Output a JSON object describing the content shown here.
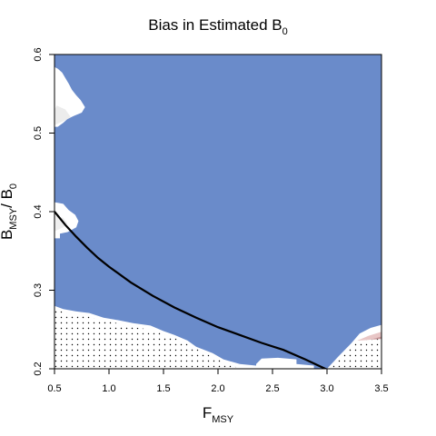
{
  "chart_data": {
    "type": "heatmap",
    "title": "Bias in Estimated B",
    "title_subscript": "0",
    "xlabel": "F",
    "xlabel_subscript": "MSY",
    "ylabel_parts": [
      "B",
      "MSY",
      "/ B",
      "0"
    ],
    "xlim": [
      0.5,
      3.5
    ],
    "ylim": [
      0.2,
      0.6
    ],
    "x_ticks": [
      0.5,
      1.0,
      1.5,
      2.0,
      2.5,
      3.0,
      3.5
    ],
    "x_tick_labels": [
      "0.5",
      "1.0",
      "1.5",
      "2.0",
      "2.5",
      "3.0",
      "3.5"
    ],
    "y_ticks": [
      0.2,
      0.3,
      0.4,
      0.5,
      0.6
    ],
    "y_tick_labels": [
      "0.2",
      "0.3",
      "0.4",
      "0.5",
      "0.6"
    ],
    "fill_color": "#6a8bca",
    "white_regions": [
      [
        [
          0.5,
          0.508
        ],
        [
          0.53,
          0.508
        ],
        [
          0.58,
          0.513
        ],
        [
          0.62,
          0.518
        ],
        [
          0.68,
          0.522
        ],
        [
          0.75,
          0.526
        ],
        [
          0.78,
          0.533
        ],
        [
          0.74,
          0.542
        ],
        [
          0.7,
          0.548
        ],
        [
          0.66,
          0.555
        ],
        [
          0.63,
          0.563
        ],
        [
          0.6,
          0.57
        ],
        [
          0.57,
          0.577
        ],
        [
          0.53,
          0.582
        ],
        [
          0.5,
          0.584
        ]
      ],
      [
        [
          0.5,
          0.366
        ],
        [
          0.55,
          0.366
        ],
        [
          0.55,
          0.372
        ],
        [
          0.62,
          0.374
        ],
        [
          0.7,
          0.38
        ],
        [
          0.72,
          0.388
        ],
        [
          0.69,
          0.396
        ],
        [
          0.63,
          0.402
        ],
        [
          0.58,
          0.41
        ],
        [
          0.5,
          0.412
        ]
      ],
      [
        [
          0.5,
          0.2
        ],
        [
          0.5,
          0.28
        ],
        [
          0.58,
          0.276
        ],
        [
          0.7,
          0.273
        ],
        [
          0.82,
          0.271
        ],
        [
          0.95,
          0.265
        ],
        [
          1.08,
          0.262
        ],
        [
          1.22,
          0.258
        ],
        [
          1.38,
          0.255
        ],
        [
          1.5,
          0.248
        ],
        [
          1.6,
          0.243
        ],
        [
          1.72,
          0.236
        ],
        [
          1.8,
          0.228
        ],
        [
          1.95,
          0.22
        ],
        [
          2.05,
          0.212
        ],
        [
          2.2,
          0.206
        ],
        [
          2.35,
          0.204
        ],
        [
          2.55,
          0.2
        ]
      ],
      [
        [
          2.35,
          0.2
        ],
        [
          2.35,
          0.206
        ],
        [
          2.4,
          0.213
        ],
        [
          2.55,
          0.214
        ],
        [
          2.72,
          0.212
        ],
        [
          2.72,
          0.206
        ],
        [
          2.88,
          0.204
        ],
        [
          2.88,
          0.2
        ]
      ],
      [
        [
          3.0,
          0.2
        ],
        [
          3.1,
          0.215
        ],
        [
          3.22,
          0.232
        ],
        [
          3.3,
          0.245
        ],
        [
          3.4,
          0.252
        ],
        [
          3.5,
          0.256
        ],
        [
          3.5,
          0.2
        ]
      ]
    ],
    "dotted_regions": [
      [
        [
          0.5,
          0.2
        ],
        [
          0.5,
          0.277
        ],
        [
          0.58,
          0.272
        ],
        [
          0.7,
          0.269
        ],
        [
          0.82,
          0.266
        ],
        [
          0.95,
          0.261
        ],
        [
          1.08,
          0.258
        ],
        [
          1.22,
          0.253
        ],
        [
          1.38,
          0.25
        ],
        [
          1.5,
          0.244
        ],
        [
          1.62,
          0.238
        ],
        [
          1.74,
          0.23
        ],
        [
          1.85,
          0.222
        ],
        [
          1.98,
          0.213
        ],
        [
          2.1,
          0.206
        ],
        [
          2.2,
          0.2
        ]
      ],
      [
        [
          3.0,
          0.2
        ],
        [
          3.1,
          0.214
        ],
        [
          3.2,
          0.226
        ],
        [
          3.3,
          0.236
        ],
        [
          3.5,
          0.238
        ],
        [
          3.5,
          0.2
        ]
      ]
    ],
    "shaded_patches": [
      {
        "polygon": [
          [
            3.28,
            0.236
          ],
          [
            3.38,
            0.242
          ],
          [
            3.5,
            0.247
          ],
          [
            3.5,
            0.237
          ],
          [
            3.4,
            0.233
          ]
        ],
        "color": "#e8c6c6"
      },
      {
        "polygon": [
          [
            3.42,
            0.238
          ],
          [
            3.5,
            0.241
          ],
          [
            3.5,
            0.236
          ],
          [
            3.45,
            0.235
          ]
        ],
        "color": "#c9999b"
      },
      {
        "polygon": [
          [
            0.5,
            0.51
          ],
          [
            0.58,
            0.515
          ],
          [
            0.65,
            0.52
          ],
          [
            0.6,
            0.53
          ],
          [
            0.52,
            0.535
          ],
          [
            0.5,
            0.53
          ]
        ],
        "color": "#ececec"
      },
      {
        "polygon": [
          [
            0.5,
            0.375
          ],
          [
            0.58,
            0.38
          ],
          [
            0.62,
            0.385
          ],
          [
            0.58,
            0.392
          ],
          [
            0.5,
            0.395
          ]
        ],
        "color": "#efefef"
      }
    ],
    "series": [
      {
        "type": "line",
        "x": [
          0.5,
          0.6,
          0.7,
          0.8,
          0.9,
          1.0,
          1.2,
          1.4,
          1.6,
          1.8,
          2.0,
          2.2,
          2.4,
          2.6,
          2.8,
          3.0
        ],
        "values": [
          0.4,
          0.383,
          0.368,
          0.354,
          0.341,
          0.33,
          0.31,
          0.293,
          0.278,
          0.265,
          0.253,
          0.243,
          0.233,
          0.224,
          0.212,
          0.199
        ]
      }
    ],
    "grid": false,
    "legend": "none"
  }
}
